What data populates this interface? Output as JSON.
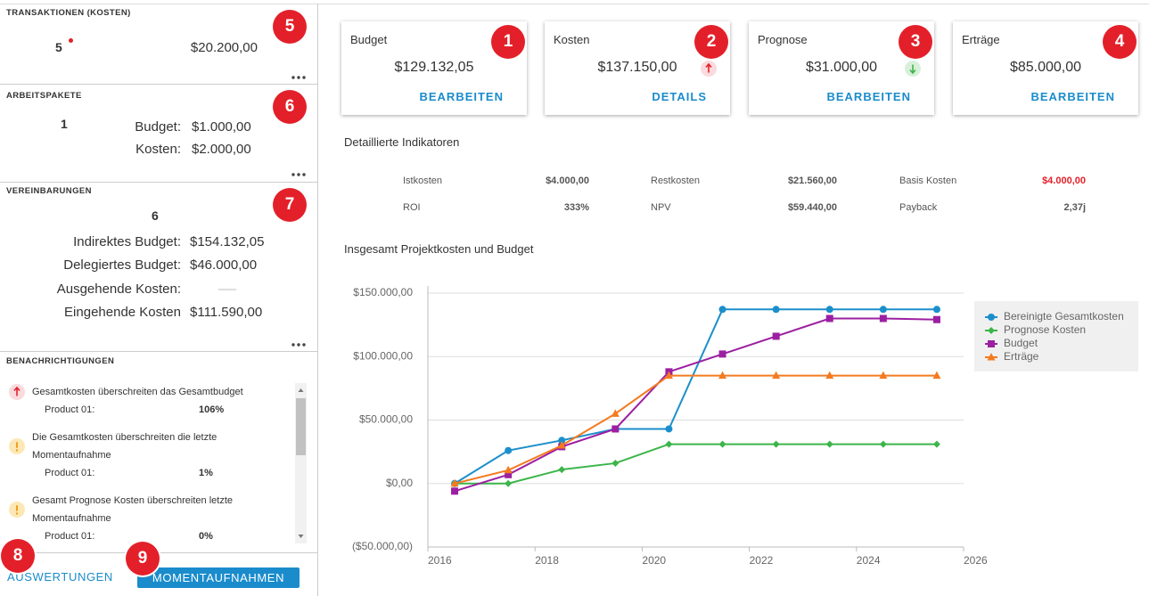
{
  "left_panel": {
    "transactions": {
      "title": "TRANSAKTIONEN (KOSTEN)",
      "count": "5",
      "amount": "$20.200,00",
      "badge": "5"
    },
    "work_packages": {
      "title": "ARBEITSPAKETE",
      "count": "1",
      "badge": "6",
      "rows": [
        {
          "label": "Budget:",
          "value": "$1.000,00"
        },
        {
          "label": "Kosten:",
          "value": "$2.000,00"
        }
      ]
    },
    "agreements": {
      "title": "VEREINBARUNGEN",
      "count": "6",
      "badge": "7",
      "rows": [
        {
          "label": "Indirektes Budget:",
          "value": "$154.132,05"
        },
        {
          "label": "Delegiertes Budget:",
          "value": "$46.000,00"
        },
        {
          "label": "Ausgehende Kosten:"
        },
        {
          "label": "Eingehende Kosten",
          "value": "$111.590,00"
        }
      ]
    },
    "notifications": {
      "title": "BENACHRICHTIGUNGEN",
      "items": [
        {
          "level": "error",
          "text": "Gesamtkosten überschreiten das Gesamtbudget",
          "product": "Product 01:",
          "value": "106%"
        },
        {
          "level": "warning",
          "text": "Die Gesamtkosten überschreiten die letzte Momentaufnahme",
          "product": "Product 01:",
          "value": "1%"
        },
        {
          "level": "warning",
          "text": "Gesamt Prognose Kosten überschreiten letzte Momentaufnahme",
          "product": "Product 01:",
          "value": "0%"
        }
      ]
    },
    "footer": {
      "reports": "AUSWERTUNGEN",
      "reports_badge": "8",
      "snapshots": "MOMENTAUFNAHMEN",
      "snapshots_badge": "9"
    }
  },
  "cards": [
    {
      "title": "Budget",
      "value": "$129.132,05",
      "action": "BEARBEITEN",
      "badge": "1"
    },
    {
      "title": "Kosten",
      "value": "$137.150,00",
      "action": "DETAILS",
      "trend": "up",
      "badge": "2"
    },
    {
      "title": "Prognose",
      "value": "$31.000,00",
      "action": "BEARBEITEN",
      "trend": "down",
      "badge": "3"
    },
    {
      "title": "Erträge",
      "value": "$85.000,00",
      "action": "BEARBEITEN",
      "badge": "4"
    }
  ],
  "indicators": {
    "title": "Detaillierte Indikatoren",
    "items": [
      {
        "label": "Istkosten",
        "value": "$4.000,00"
      },
      {
        "label": "Restkosten",
        "value": "$21.560,00"
      },
      {
        "label": "Basis Kosten",
        "value": "$4.000,00",
        "highlight": true
      },
      {
        "label": "ROI",
        "value": "333%"
      },
      {
        "label": "NPV",
        "value": "$59.440,00"
      },
      {
        "label": "Payback",
        "value": "2,37j"
      }
    ]
  },
  "chart_data": {
    "type": "line",
    "title": "Insgesamt Projektkosten und Budget",
    "x": [
      2016.5,
      2017.5,
      2018.5,
      2019.5,
      2020.5,
      2021.5,
      2022.5,
      2023.5,
      2024.5,
      2025.5
    ],
    "xlim": [
      2016,
      2026
    ],
    "xticks": [
      2016,
      2018,
      2020,
      2022,
      2024,
      2026
    ],
    "ylim": [
      -50000,
      150000
    ],
    "yticks": [
      {
        "value": -50000,
        "label": "($50.000,00)"
      },
      {
        "value": 0,
        "label": "$0,00"
      },
      {
        "value": 50000,
        "label": "$50.000,00"
      },
      {
        "value": 100000,
        "label": "$100.000,00"
      },
      {
        "value": 150000,
        "label": "$150.000,00"
      }
    ],
    "grid": true,
    "legend": "right",
    "series": [
      {
        "name": "Bereinigte Gesamtkosten",
        "color": "#1b8fcb",
        "marker": "circle",
        "values": [
          0,
          26000,
          34000,
          43000,
          43000,
          137150,
          137150,
          137150,
          137150,
          137150
        ]
      },
      {
        "name": "Prognose Kosten",
        "color": "#3cb54a",
        "marker": "diamond",
        "values": [
          0,
          0,
          11000,
          16000,
          31000,
          31000,
          31000,
          31000,
          31000,
          31000
        ]
      },
      {
        "name": "Budget",
        "color": "#9c1fa2",
        "marker": "square",
        "values": [
          -6000,
          7000,
          29000,
          43000,
          88000,
          102000,
          116000,
          130000,
          130000,
          129132.05
        ]
      },
      {
        "name": "Erträge",
        "color": "#f47b20",
        "marker": "triangle",
        "values": [
          0,
          10500,
          30000,
          55000,
          85000,
          85000,
          85000,
          85000,
          85000,
          85000
        ]
      }
    ]
  }
}
